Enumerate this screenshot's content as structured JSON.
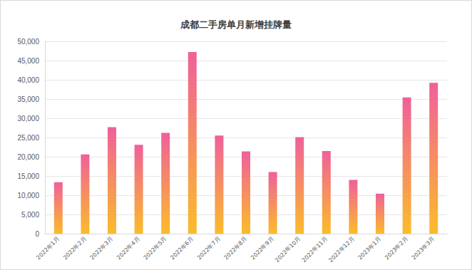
{
  "chart_data": {
    "type": "bar",
    "title": "成都二手房单月新增挂牌量",
    "categories": [
      "2022年1月",
      "2022年2月",
      "2022年3月",
      "2022年4月",
      "2022年5月",
      "2022年6月",
      "2022年7月",
      "2022年8月",
      "2022年9月",
      "2022年10月",
      "2022年11月",
      "2022年12月",
      "2023年1月",
      "2023年2月",
      "2023年3月"
    ],
    "values": [
      13400,
      20600,
      27700,
      23100,
      26200,
      47200,
      25500,
      21400,
      16000,
      25100,
      21500,
      14000,
      10400,
      35400,
      39200
    ],
    "color": "#f0609a",
    "ylim": [
      0,
      50000
    ],
    "yticks": [
      0,
      5000,
      10000,
      15000,
      20000,
      25000,
      30000,
      35000,
      40000,
      45000,
      50000
    ],
    "grid": true
  }
}
